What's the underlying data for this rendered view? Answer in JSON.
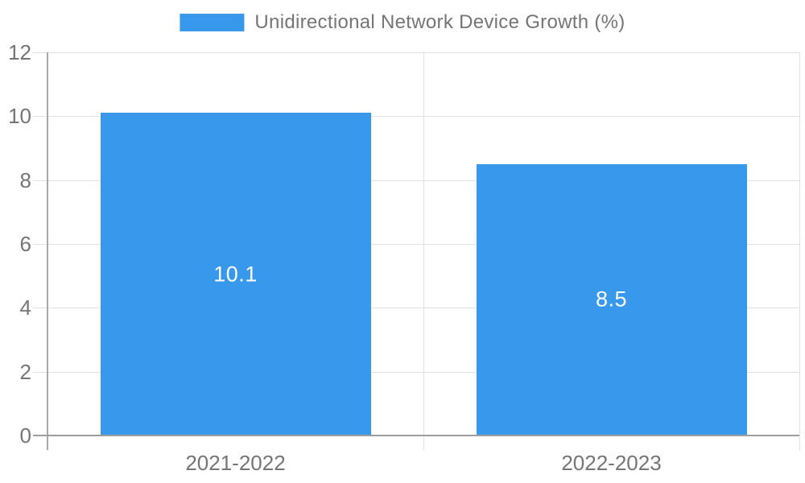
{
  "legend": {
    "label": "Unidirectional Network Device Growth (%)"
  },
  "colors": {
    "bar": "#3899ec",
    "grid": "#e2e2e2",
    "axis": "#9e9e9e",
    "axis_y": "#a8a8a8",
    "text": "#757575",
    "bar_label": "#ffffff",
    "background": "#ffffff"
  },
  "chart_data": {
    "type": "bar",
    "title": "Unidirectional Network Device Growth (%)",
    "categories": [
      "2021-2022",
      "2022-2023"
    ],
    "series": [
      {
        "name": "Unidirectional Network Device Growth (%)",
        "values": [
          10.1,
          8.5
        ],
        "labels": [
          "10.1",
          "8.5"
        ]
      }
    ],
    "xlabel": "",
    "ylabel": "",
    "ylim": [
      0,
      12
    ],
    "yticks": [
      0,
      2,
      4,
      6,
      8,
      10,
      12
    ],
    "grid": true,
    "legend_position": "top",
    "bar_label_position": "center"
  }
}
